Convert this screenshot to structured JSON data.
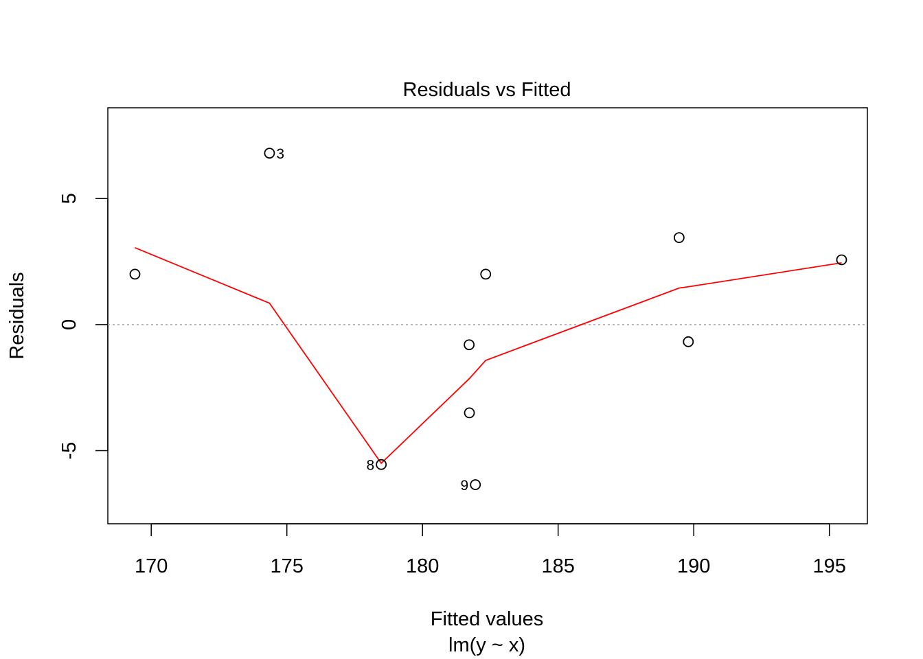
{
  "chart_data": {
    "type": "scatter",
    "title": "Residuals vs Fitted",
    "xlabel": "Fitted values",
    "subtitle": "lm(y ~ x)",
    "ylabel": "Residuals",
    "xlim": [
      168.4,
      196.4
    ],
    "ylim": [
      -7.9,
      8.6
    ],
    "xticks": [
      170,
      175,
      180,
      185,
      190,
      195
    ],
    "xtick_labels": [
      "170",
      "175",
      "180",
      "185",
      "190",
      "195"
    ],
    "yticks": [
      -5,
      0,
      5
    ],
    "ytick_labels": [
      "-5",
      "0",
      "5"
    ],
    "grid": false,
    "legend": "none",
    "reference_line": {
      "y": 0,
      "style": "dotted",
      "color": "#aaaaaa"
    },
    "points": [
      {
        "x": 169.4,
        "y": 2.0,
        "label": ""
      },
      {
        "x": 174.36,
        "y": 6.8,
        "label": "3"
      },
      {
        "x": 178.48,
        "y": -5.55,
        "label": "8"
      },
      {
        "x": 181.72,
        "y": -0.8,
        "label": ""
      },
      {
        "x": 181.73,
        "y": -3.5,
        "label": ""
      },
      {
        "x": 181.95,
        "y": -6.35,
        "label": "9"
      },
      {
        "x": 182.33,
        "y": 2.0,
        "label": ""
      },
      {
        "x": 189.46,
        "y": 3.45,
        "label": ""
      },
      {
        "x": 189.8,
        "y": -0.68,
        "label": ""
      },
      {
        "x": 195.45,
        "y": 2.57,
        "label": ""
      }
    ],
    "point_label_sides": [
      "",
      "right",
      "left",
      "",
      "",
      "left",
      "",
      "",
      "",
      ""
    ],
    "smoother": {
      "color": "#ff0000",
      "x": [
        169.4,
        174.36,
        178.48,
        181.72,
        182.33,
        189.46,
        189.8,
        195.45
      ],
      "y": [
        3.05,
        0.85,
        -5.5,
        -2.15,
        -1.42,
        1.45,
        1.5,
        2.45
      ]
    },
    "colors": {
      "points": "#000000",
      "smoother": "#ff0000",
      "axes": "#000000"
    }
  }
}
